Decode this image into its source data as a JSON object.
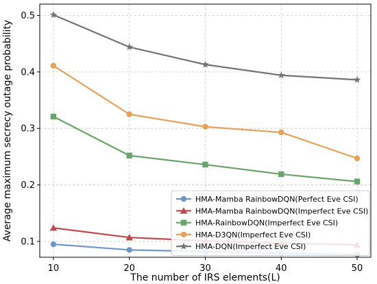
{
  "chart_data": {
    "type": "line",
    "title": "",
    "xlabel": "The number of IRS elements(L)",
    "ylabel": "Average maximum secrecy outage probability",
    "x": [
      10,
      20,
      30,
      40,
      50
    ],
    "xlim": [
      8.2,
      51.8
    ],
    "ylim": [
      0.072,
      0.52
    ],
    "xticks": [
      10,
      20,
      30,
      40,
      50
    ],
    "yticks": [
      0.1,
      0.2,
      0.3,
      0.4,
      0.5
    ],
    "ytick_labels": [
      "0.1",
      "0.2",
      "0.3",
      "0.4",
      "0.5"
    ],
    "grid": true,
    "legend_position": "lower-right",
    "series": [
      {
        "name": "HMA-Mamba RainbowDQN(Perfect Eve CSI)",
        "color": "#6f95c9",
        "marker": "circle",
        "values": [
          0.095,
          0.085,
          0.082,
          0.079,
          0.077
        ]
      },
      {
        "name": "HMA-Mamba RainbowDQN(Imperfect Eve CSI)",
        "color": "#c0474b",
        "marker": "triangle",
        "values": [
          0.124,
          0.107,
          0.101,
          0.097,
          0.094
        ]
      },
      {
        "name": "HMA-RainbowDQN(Imperfect Eve CSI)",
        "color": "#6ba36b",
        "marker": "square",
        "values": [
          0.321,
          0.252,
          0.236,
          0.219,
          0.206
        ]
      },
      {
        "name": "HMA-D3QN(Imperfect Eve CSI)",
        "color": "#e4a25a",
        "marker": "circle",
        "values": [
          0.411,
          0.325,
          0.303,
          0.293,
          0.247
        ]
      },
      {
        "name": "HMA-DQN(Imperfect Eve CSI)",
        "color": "#737373",
        "marker": "star",
        "values": [
          0.501,
          0.444,
          0.413,
          0.394,
          0.386
        ]
      }
    ]
  }
}
